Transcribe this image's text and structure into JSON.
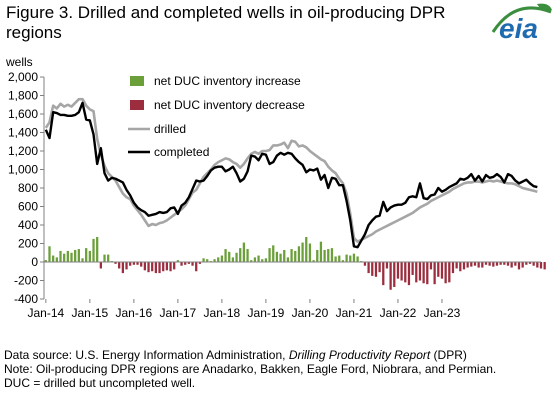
{
  "title": "Figure 3. Drilled and completed wells in oil-producing DPR regions",
  "logo_text": "eia",
  "colors": {
    "increase": "#6a9f39",
    "decrease": "#9b2d3e",
    "drilled": "#a6a6a6",
    "completed": "#000000",
    "logo_green": "#3a8e3e",
    "logo_blue": "#1f6bb0"
  },
  "chart_data": {
    "type": "line",
    "ylabel": "wells",
    "ylim": [
      -400,
      2000
    ],
    "yticks": [
      -400,
      -200,
      0,
      200,
      400,
      600,
      800,
      1000,
      1200,
      1400,
      1600,
      1800,
      2000
    ],
    "ytick_labels": [
      "-400",
      "-200",
      "0",
      "200",
      "400",
      "600",
      "800",
      "1,000",
      "1,200",
      "1,400",
      "1,600",
      "1,800",
      "2,000"
    ],
    "x_start": "2014-01",
    "xticks": [
      "Jan-14",
      "Jan-15",
      "Jan-16",
      "Jan-17",
      "Jan-18",
      "Jan-19",
      "Jan-20",
      "Jan-21",
      "Jan-22",
      "Jan-23"
    ],
    "legend": [
      "net DUC inventory increase",
      "net DUC inventory decrease",
      "drilled",
      "completed"
    ],
    "legend_position": "top-left",
    "grid": false,
    "series": [
      {
        "name": "completed",
        "kind": "line",
        "values": [
          1430,
          1340,
          1620,
          1610,
          1590,
          1590,
          1580,
          1580,
          1590,
          1620,
          1720,
          1540,
          1530,
          1380,
          1060,
          1230,
          960,
          880,
          910,
          900,
          880,
          860,
          780,
          720,
          640,
          590,
          560,
          540,
          500,
          510,
          520,
          540,
          530,
          540,
          580,
          590,
          520,
          610,
          640,
          700,
          790,
          880,
          870,
          880,
          930,
          990,
          1020,
          1030,
          1030,
          980,
          1000,
          1030,
          960,
          870,
          900,
          980,
          1150,
          1140,
          1100,
          1170,
          1160,
          1060,
          1080,
          1150,
          1180,
          1160,
          1180,
          1170,
          1120,
          1080,
          1050,
          970,
          1000,
          990,
          1010,
          890,
          940,
          800,
          910,
          900,
          830,
          830,
          660,
          450,
          170,
          160,
          230,
          300,
          400,
          450,
          490,
          500,
          650,
          550,
          590,
          610,
          620,
          620,
          640,
          700,
          710,
          700,
          850,
          690,
          680,
          720,
          730,
          800,
          760,
          780,
          810,
          830,
          850,
          900,
          890,
          910,
          950,
          880,
          930,
          870,
          940,
          910,
          920,
          950,
          920,
          860,
          950,
          930,
          880,
          850,
          870,
          890,
          850,
          820,
          810
        ]
      },
      {
        "name": "drilled",
        "kind": "line",
        "values": [
          1450,
          1510,
          1690,
          1660,
          1710,
          1680,
          1700,
          1680,
          1720,
          1760,
          1760,
          1690,
          1650,
          1630,
          1330,
          1160,
          1040,
          960,
          920,
          880,
          810,
          740,
          700,
          680,
          610,
          560,
          510,
          450,
          390,
          410,
          400,
          420,
          430,
          450,
          480,
          510,
          540,
          570,
          610,
          680,
          750,
          780,
          850,
          920,
          960,
          1000,
          1050,
          1080,
          1100,
          1120,
          1110,
          1080,
          1060,
          1020,
          1060,
          1120,
          1170,
          1190,
          1170,
          1200,
          1200,
          1210,
          1260,
          1260,
          1270,
          1290,
          1230,
          1310,
          1300,
          1250,
          1260,
          1240,
          1200,
          1170,
          1140,
          1110,
          1090,
          1030,
          990,
          960,
          900,
          850,
          740,
          520,
          260,
          220,
          240,
          260,
          280,
          300,
          330,
          350,
          370,
          390,
          410,
          430,
          450,
          470,
          490,
          510,
          530,
          560,
          590,
          610,
          630,
          660,
          680,
          700,
          720,
          740,
          760,
          790,
          810,
          830,
          850,
          860,
          860,
          870,
          870,
          860,
          870,
          880,
          870,
          880,
          870,
          860,
          850,
          850,
          840,
          820,
          800,
          790,
          780,
          770,
          760
        ]
      },
      {
        "name": "net DUC inventory",
        "kind": "bar",
        "values": [
          20,
          170,
          70,
          50,
          120,
          90,
          120,
          100,
          130,
          140,
          40,
          150,
          120,
          250,
          270,
          -70,
          80,
          80,
          10,
          -20,
          -70,
          -120,
          -80,
          -40,
          -30,
          -30,
          -50,
          -90,
          -110,
          -100,
          -120,
          -120,
          -100,
          -90,
          -100,
          -80,
          20,
          -40,
          -30,
          -20,
          -40,
          -100,
          -20,
          40,
          30,
          10,
          30,
          50,
          70,
          140,
          110,
          50,
          100,
          150,
          210,
          140,
          20,
          50,
          70,
          30,
          40,
          150,
          180,
          110,
          90,
          130,
          50,
          140,
          120,
          170,
          210,
          270,
          200,
          20,
          130,
          220,
          130,
          140,
          150,
          60,
          70,
          20,
          80,
          70,
          90,
          60,
          10,
          -40,
          -120,
          -150,
          -160,
          -110,
          -250,
          -70,
          -300,
          -270,
          -180,
          -200,
          -220,
          -250,
          -140,
          -220,
          -200,
          -230,
          -240,
          -80,
          -240,
          -160,
          -180,
          -230,
          -220,
          -120,
          -70,
          -100,
          -80,
          -60,
          -50,
          -40,
          -60,
          -60,
          -30,
          -40,
          -50,
          -40,
          -30,
          -30,
          -40,
          -60,
          -40,
          -80,
          -60,
          -30,
          -20,
          -40,
          -60,
          -70,
          -80
        ]
      }
    ]
  },
  "notes": {
    "source_prefix": "Data source: U.S. Energy Information Administration,",
    "source_title": "Drilling Productivity Report",
    "source_suffix": "(DPR)",
    "note": "Note: Oil-producing DPR regions are Anadarko, Bakken, Eagle Ford, Niobrara, and Permian.",
    "definition": "DUC = drilled but uncompleted well."
  }
}
